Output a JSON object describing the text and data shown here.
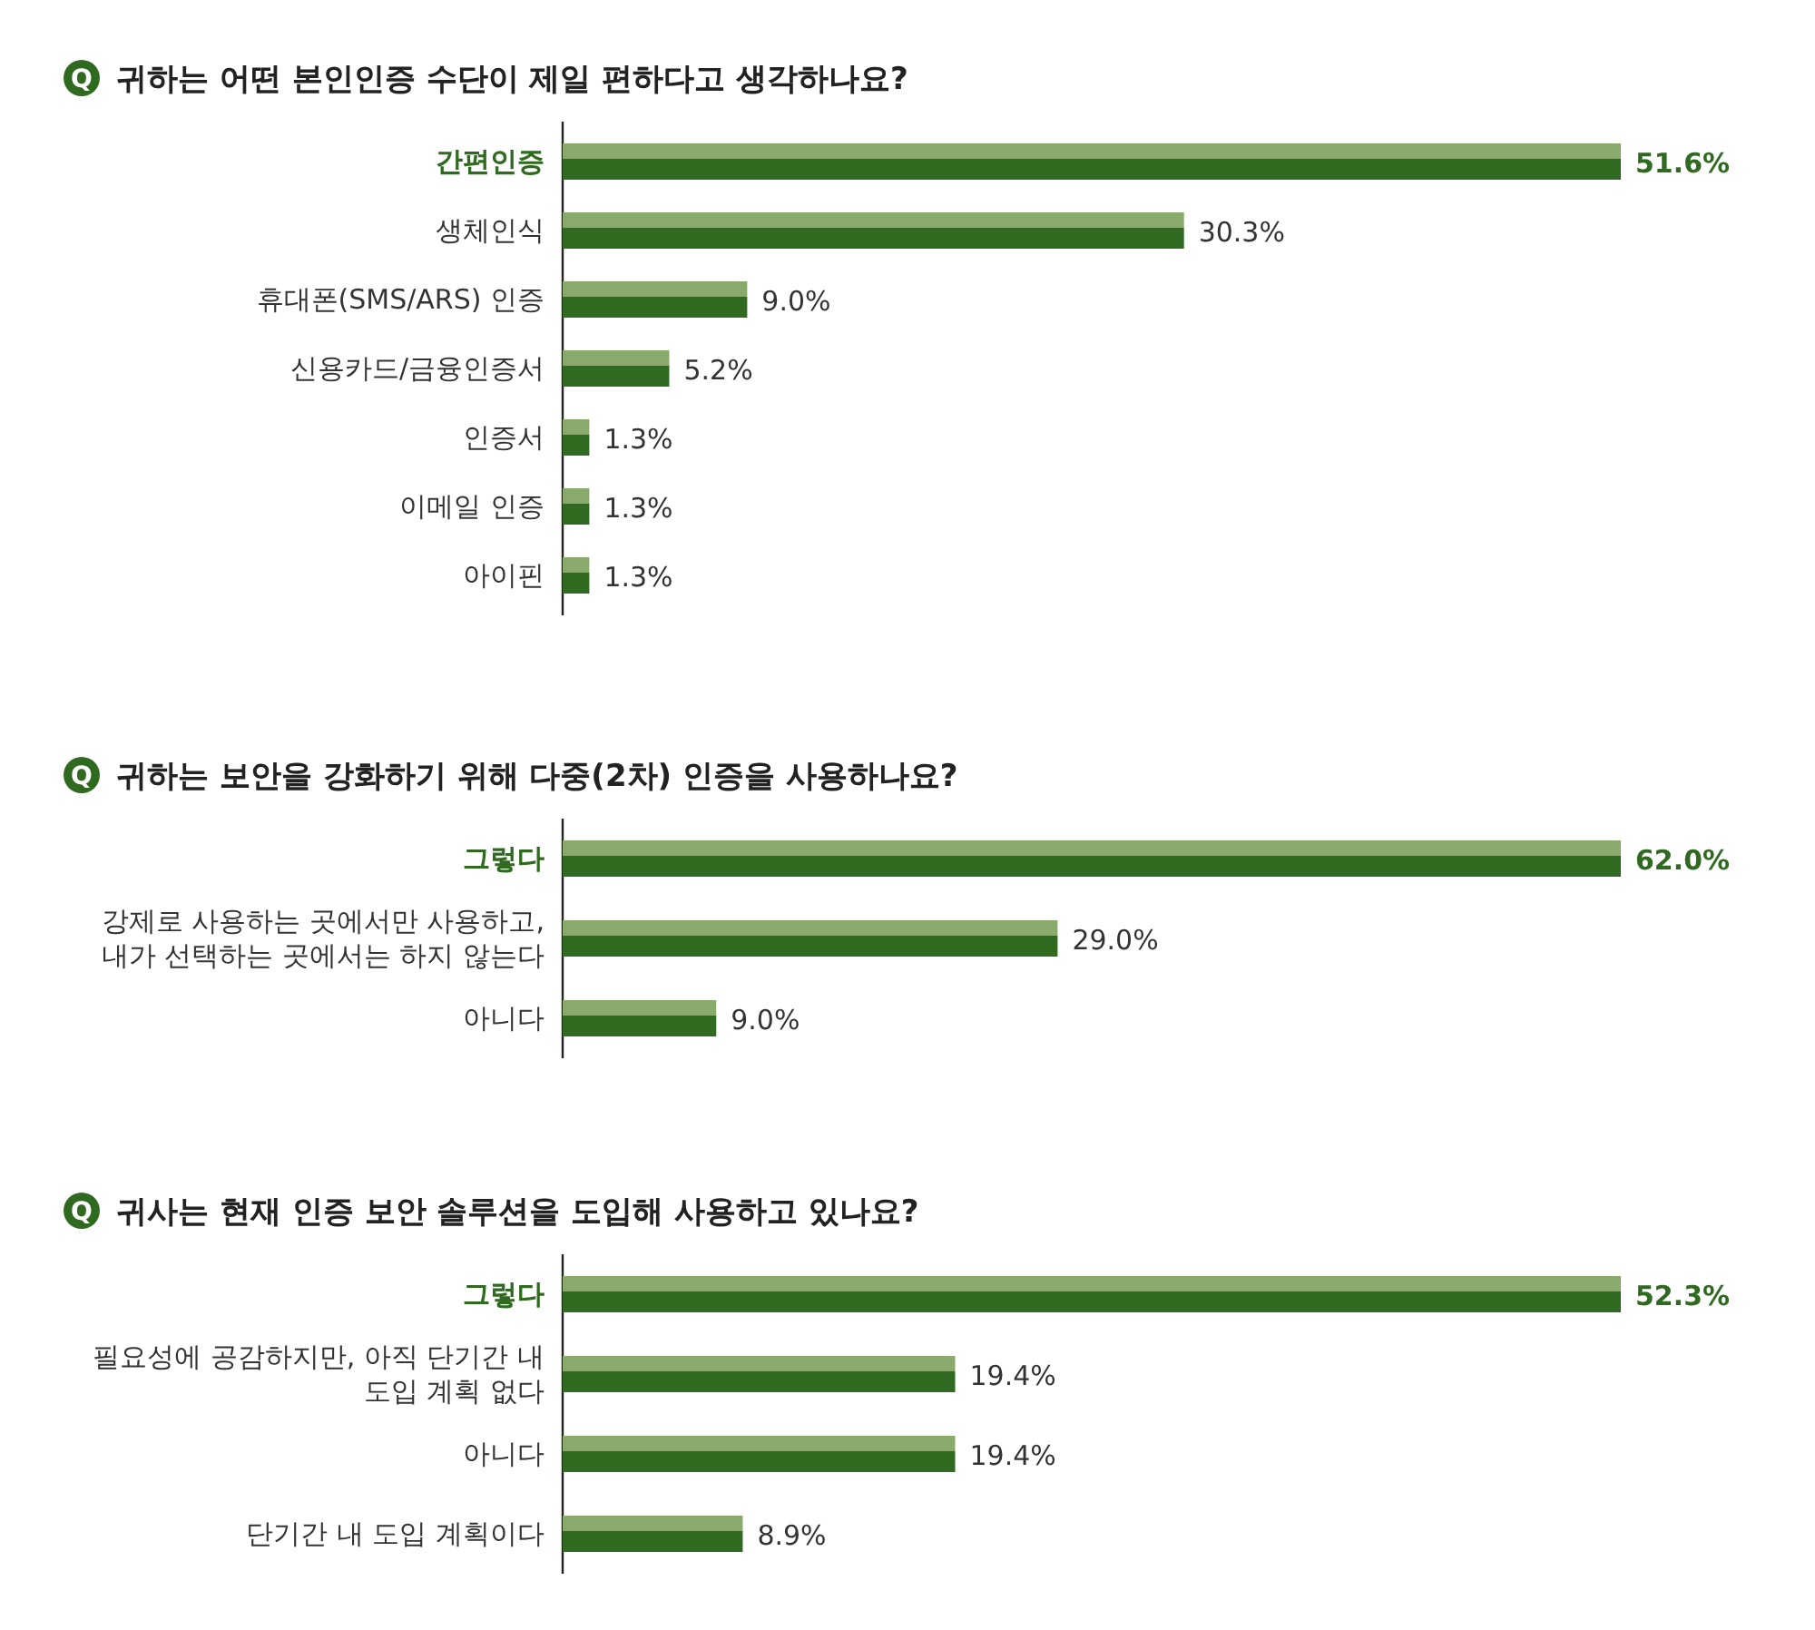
{
  "chart_data": [
    {
      "type": "bar",
      "orientation": "horizontal",
      "title": "귀하는 어떤 본인인증 수단이 제일 편하다고 생각하나요?",
      "annotations": [
        "Q"
      ],
      "categories": [
        "간편인증",
        "생체인식",
        "휴대폰(SMS/ARS) 인증",
        "신용카드/금융인증서",
        "인증서",
        "이메일 인증",
        "아이핀"
      ],
      "values": [
        51.6,
        30.3,
        9.0,
        5.2,
        1.3,
        1.3,
        1.3
      ],
      "value_labels": [
        "51.6%",
        "30.3%",
        "9.0%",
        "5.2%",
        "1.3%",
        "1.3%",
        "1.3%"
      ],
      "color": "#2f6a20"
    },
    {
      "type": "bar",
      "orientation": "horizontal",
      "title": "귀하는 보안을 강화하기 위해 다중(2차) 인증을 사용하나요?",
      "annotations": [
        "Q"
      ],
      "categories": [
        "그렇다",
        "강제로 사용하는 곳에서만 사용하고, 내가 선택하는 곳에서는 하지 않는다",
        "아니다"
      ],
      "values": [
        62.0,
        29.0,
        9.0
      ],
      "value_labels": [
        "62.0%",
        "29.0%",
        "9.0%"
      ],
      "color": "#2f6a20"
    },
    {
      "type": "bar",
      "orientation": "horizontal",
      "title": "귀사는 현재 인증 보안 솔루션을 도입해 사용하고 있나요?",
      "annotations": [
        "Q"
      ],
      "categories": [
        "그렇다",
        "필요성에 공감하지만, 아직 단기간 내 도입 계획 없다",
        "아니다",
        "단기간 내 도입 계획이다"
      ],
      "values": [
        52.3,
        19.4,
        19.4,
        8.9
      ],
      "value_labels": [
        "52.3%",
        "19.4%",
        "19.4%",
        "8.9%"
      ],
      "color": "#2f6a20"
    }
  ]
}
